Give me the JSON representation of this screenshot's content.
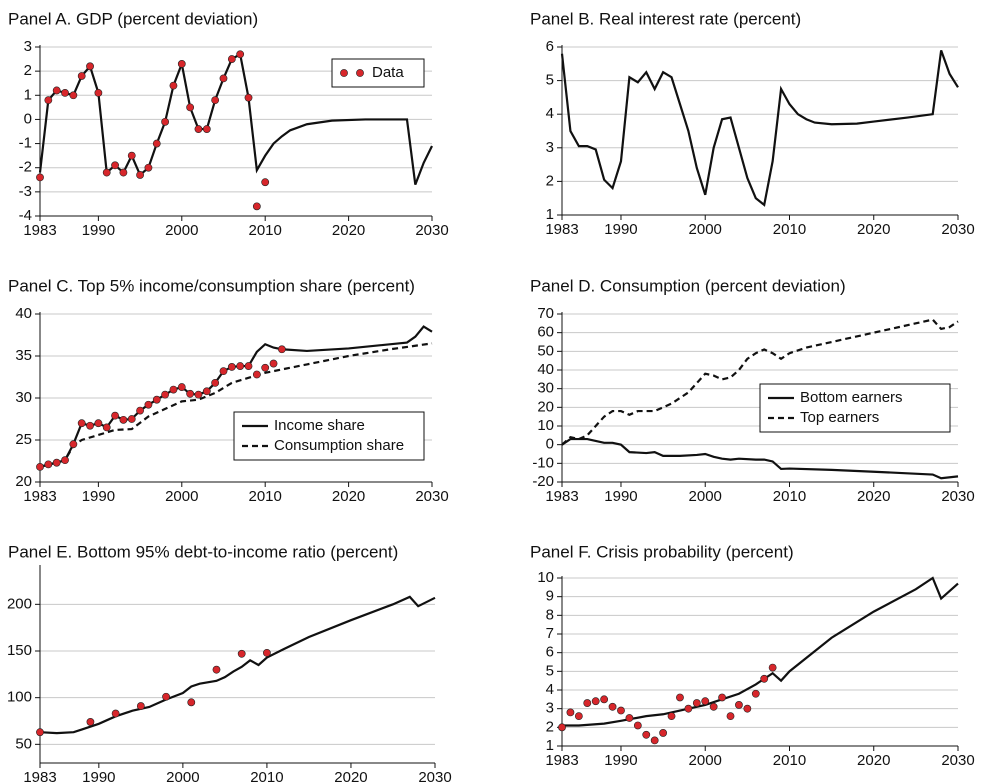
{
  "chart_data": [
    {
      "type": "line",
      "title": "Panel A. GDP (percent deviation)",
      "xlim": [
        1983,
        2030
      ],
      "xticks": [
        1983,
        1990,
        2000,
        2010,
        2020,
        2030
      ],
      "ylim": [
        -4,
        3
      ],
      "yticks": [
        -4,
        -3,
        -2,
        -1,
        0,
        1,
        2,
        3
      ],
      "grid": true,
      "legend": "upper right",
      "series": [
        {
          "style": "solid",
          "color": "#111111",
          "x": [
            1983,
            1984,
            1985,
            1986,
            1987,
            1988,
            1989,
            1990,
            1991,
            1992,
            1993,
            1994,
            1995,
            1996,
            1997,
            1998,
            1999,
            2000,
            2001,
            2002,
            2003,
            2004,
            2005,
            2006,
            2007,
            2008,
            2009,
            2010,
            2011,
            2012,
            2013,
            2015,
            2018,
            2022,
            2027,
            2028,
            2029,
            2030
          ],
          "values": [
            -2.2,
            0.8,
            1.2,
            1.1,
            1.0,
            1.8,
            2.2,
            1.1,
            -2.2,
            -1.9,
            -2.2,
            -1.5,
            -2.3,
            -2.0,
            -1.0,
            -0.1,
            1.4,
            2.3,
            0.5,
            -0.4,
            -0.4,
            0.8,
            1.7,
            2.5,
            2.7,
            0.9,
            -2.1,
            -1.5,
            -1.0,
            -0.7,
            -0.45,
            -0.2,
            -0.05,
            0,
            0,
            -2.7,
            -1.8,
            -1.1
          ]
        },
        {
          "name": "Data",
          "style": "markers",
          "color": "#d7262b",
          "x": [
            1983,
            1984,
            1985,
            1986,
            1987,
            1988,
            1989,
            1990,
            1991,
            1992,
            1993,
            1994,
            1995,
            1996,
            1997,
            1998,
            1999,
            2000,
            2001,
            2002,
            2003,
            2004,
            2005,
            2006,
            2007,
            2008,
            2009,
            2010
          ],
          "values": [
            -2.4,
            0.8,
            1.2,
            1.1,
            1.0,
            1.8,
            2.2,
            1.1,
            -2.2,
            -1.9,
            -2.2,
            -1.5,
            -2.3,
            -2.0,
            -1.0,
            -0.1,
            1.4,
            2.3,
            0.5,
            -0.4,
            -0.4,
            0.8,
            1.7,
            2.5,
            2.7,
            0.9,
            -3.6,
            -2.6
          ]
        }
      ]
    },
    {
      "type": "line",
      "title": "Panel B. Real interest rate (percent)",
      "xlim": [
        1983,
        2030
      ],
      "xticks": [
        1983,
        1990,
        2000,
        2010,
        2020,
        2030
      ],
      "ylim": [
        1,
        6
      ],
      "yticks": [
        1,
        2,
        3,
        4,
        5,
        6
      ],
      "grid": true,
      "series": [
        {
          "style": "solid",
          "color": "#111111",
          "x": [
            1983,
            1984,
            1985,
            1986,
            1987,
            1988,
            1989,
            1990,
            1991,
            1992,
            1993,
            1994,
            1995,
            1996,
            1997,
            1998,
            1999,
            2000,
            2001,
            2002,
            2003,
            2004,
            2005,
            2006,
            2007,
            2008,
            2009,
            2010,
            2011,
            2012,
            2013,
            2015,
            2018,
            2020,
            2024,
            2027,
            2028,
            2029,
            2030
          ],
          "values": [
            5.8,
            3.5,
            3.05,
            3.05,
            2.95,
            2.05,
            1.8,
            2.6,
            5.1,
            4.95,
            5.25,
            4.75,
            5.25,
            5.1,
            4.3,
            3.5,
            2.4,
            1.6,
            3.0,
            3.85,
            3.9,
            3.0,
            2.1,
            1.5,
            1.3,
            2.6,
            4.75,
            4.3,
            4.0,
            3.85,
            3.75,
            3.7,
            3.72,
            3.78,
            3.9,
            4.0,
            5.9,
            5.2,
            4.8
          ]
        }
      ]
    },
    {
      "type": "line",
      "title": "Panel C. Top 5% income/consumption share (percent)",
      "xlim": [
        1983,
        2030
      ],
      "xticks": [
        1983,
        1990,
        2000,
        2010,
        2020,
        2030
      ],
      "ylim": [
        20,
        40
      ],
      "yticks": [
        20,
        25,
        30,
        35,
        40
      ],
      "grid": true,
      "legend": "lower right",
      "series": [
        {
          "name": "Income share",
          "style": "solid",
          "color": "#111111",
          "x": [
            1983,
            1984,
            1985,
            1986,
            1987,
            1988,
            1989,
            1990,
            1991,
            1992,
            1993,
            1994,
            1995,
            1996,
            1997,
            1998,
            1999,
            2000,
            2001,
            2002,
            2003,
            2004,
            2005,
            2006,
            2007,
            2008,
            2009,
            2010,
            2011,
            2012,
            2015,
            2020,
            2027,
            2028,
            2029,
            2030
          ],
          "values": [
            21.8,
            22.1,
            22.3,
            22.6,
            24.5,
            27.0,
            26.7,
            27.0,
            26.5,
            27.9,
            27.4,
            27.5,
            28.5,
            29.2,
            29.8,
            30.4,
            31.0,
            31.3,
            30.5,
            30.4,
            30.8,
            31.8,
            33.2,
            33.7,
            33.8,
            33.8,
            35.5,
            36.4,
            36.0,
            35.8,
            35.6,
            35.9,
            36.6,
            37.3,
            38.5,
            37.9
          ]
        },
        {
          "name": "Consumption share",
          "style": "dashed",
          "color": "#111111",
          "x": [
            1983,
            1985,
            1986,
            1987,
            1988,
            1990,
            1992,
            1994,
            1996,
            1998,
            2000,
            2002,
            2004,
            2006,
            2008,
            2010,
            2015,
            2020,
            2025,
            2030
          ],
          "values": [
            21.8,
            22.3,
            22.6,
            24.3,
            25.0,
            25.6,
            26.2,
            26.3,
            27.8,
            28.7,
            29.6,
            29.8,
            30.6,
            31.8,
            32.4,
            33.0,
            34.0,
            35.0,
            35.8,
            36.5
          ]
        },
        {
          "style": "markers",
          "color": "#d7262b",
          "x": [
            1983,
            1984,
            1985,
            1986,
            1987,
            1988,
            1989,
            1990,
            1991,
            1992,
            1993,
            1994,
            1995,
            1996,
            1997,
            1998,
            1999,
            2000,
            2001,
            2002,
            2003,
            2004,
            2005,
            2006,
            2007,
            2008,
            2009,
            2010,
            2011,
            2012
          ],
          "values": [
            21.8,
            22.1,
            22.3,
            22.6,
            24.5,
            27.0,
            26.7,
            27.0,
            26.5,
            27.9,
            27.4,
            27.5,
            28.5,
            29.2,
            29.8,
            30.4,
            31.0,
            31.3,
            30.5,
            30.4,
            30.8,
            31.8,
            33.2,
            33.7,
            33.8,
            33.8,
            32.8,
            33.6,
            34.1,
            35.8
          ]
        }
      ]
    },
    {
      "type": "line",
      "title": "Panel D. Consumption (percent deviation)",
      "xlim": [
        1983,
        2030
      ],
      "xticks": [
        1983,
        1990,
        2000,
        2010,
        2020,
        2030
      ],
      "ylim": [
        -20,
        70
      ],
      "yticks": [
        -20,
        -10,
        0,
        10,
        20,
        30,
        40,
        50,
        60,
        70
      ],
      "grid": true,
      "legend": "center right",
      "series": [
        {
          "name": "Bottom earners",
          "style": "solid",
          "color": "#111111",
          "x": [
            1983,
            1984,
            1985,
            1986,
            1987,
            1988,
            1989,
            1990,
            1991,
            1993,
            1994,
            1995,
            1997,
            1999,
            2000,
            2001,
            2002,
            2003,
            2004,
            2006,
            2007,
            2008,
            2009,
            2010,
            2015,
            2020,
            2027,
            2028,
            2030
          ],
          "values": [
            0,
            3,
            3,
            3,
            2,
            1,
            1,
            0,
            -4,
            -4.5,
            -4,
            -6,
            -6,
            -5.5,
            -5,
            -6.5,
            -7.5,
            -8,
            -7.5,
            -8,
            -8,
            -9,
            -13,
            -12.8,
            -13.5,
            -14.5,
            -16,
            -18,
            -17
          ]
        },
        {
          "name": "Top earners",
          "style": "dashed",
          "color": "#111111",
          "x": [
            1983,
            1984,
            1985,
            1986,
            1987,
            1988,
            1989,
            1990,
            1991,
            1992,
            1994,
            1996,
            1998,
            1999,
            2000,
            2001,
            2002,
            2003,
            2004,
            2005,
            2006,
            2007,
            2008,
            2009,
            2010,
            2012,
            2015,
            2020,
            2025,
            2027,
            2028,
            2029,
            2030
          ],
          "values": [
            0,
            4,
            3,
            5,
            10,
            15,
            18,
            18,
            16,
            18,
            18,
            22,
            28,
            33,
            38,
            37,
            35,
            36,
            40,
            46,
            49,
            51,
            49,
            46,
            49,
            52,
            55,
            60,
            65,
            67,
            62,
            63,
            66
          ]
        }
      ]
    },
    {
      "type": "line",
      "title": "Panel E. Bottom 95% debt-to-income ratio (percent)",
      "xlim": [
        1983,
        2030
      ],
      "xticks": [
        1983,
        1990,
        2000,
        2010,
        2020,
        2030
      ],
      "ylim": [
        30,
        240
      ],
      "yticks": [
        50,
        100,
        150,
        200
      ],
      "grid": true,
      "series": [
        {
          "style": "solid",
          "color": "#111111",
          "x": [
            1983,
            1985,
            1987,
            1988,
            1990,
            1992,
            1994,
            1996,
            1998,
            2000,
            2001,
            2002,
            2004,
            2005,
            2006,
            2007,
            2008,
            2009,
            2010,
            2012,
            2015,
            2020,
            2025,
            2027,
            2028,
            2030
          ],
          "values": [
            63,
            62,
            63,
            66,
            72,
            80,
            86,
            90,
            98,
            105,
            112,
            115,
            118,
            122,
            128,
            133,
            140,
            135,
            143,
            152,
            165,
            183,
            200,
            208,
            198,
            207
          ]
        },
        {
          "style": "markers",
          "color": "#d7262b",
          "x": [
            1983,
            1989,
            1992,
            1995,
            1998,
            2001,
            2004,
            2007,
            2010
          ],
          "values": [
            63,
            74,
            83,
            91,
            101,
            95,
            130,
            147,
            148
          ]
        }
      ]
    },
    {
      "type": "line",
      "title": "Panel F. Crisis probability (percent)",
      "xlim": [
        1983,
        2030
      ],
      "xticks": [
        1983,
        1990,
        2000,
        2010,
        2020,
        2030
      ],
      "ylim": [
        1,
        10
      ],
      "yticks": [
        1,
        2,
        3,
        4,
        5,
        6,
        7,
        8,
        9,
        10
      ],
      "grid": true,
      "series": [
        {
          "style": "solid",
          "color": "#111111",
          "x": [
            1983,
            1985,
            1988,
            1990,
            1993,
            1995,
            1998,
            2000,
            2002,
            2004,
            2006,
            2008,
            2009,
            2010,
            2015,
            2020,
            2025,
            2027,
            2028,
            2030
          ],
          "values": [
            2.1,
            2.1,
            2.2,
            2.35,
            2.6,
            2.7,
            3.0,
            3.2,
            3.5,
            3.8,
            4.3,
            4.9,
            4.5,
            5.0,
            6.8,
            8.2,
            9.4,
            10.0,
            8.9,
            9.7
          ]
        },
        {
          "style": "markers",
          "color": "#d7262b",
          "x": [
            1983,
            1984,
            1985,
            1986,
            1987,
            1988,
            1989,
            1990,
            1991,
            1992,
            1993,
            1994,
            1995,
            1996,
            1997,
            1998,
            1999,
            2000,
            2001,
            2002,
            2003,
            2004,
            2005,
            2006,
            2007,
            2008
          ],
          "values": [
            2.0,
            2.8,
            2.6,
            3.3,
            3.4,
            3.5,
            3.1,
            2.9,
            2.5,
            2.1,
            1.6,
            1.3,
            1.7,
            2.6,
            3.6,
            3.0,
            3.3,
            3.4,
            3.1,
            3.6,
            2.6,
            3.2,
            3.0,
            3.8,
            4.6,
            5.2
          ]
        }
      ]
    }
  ]
}
